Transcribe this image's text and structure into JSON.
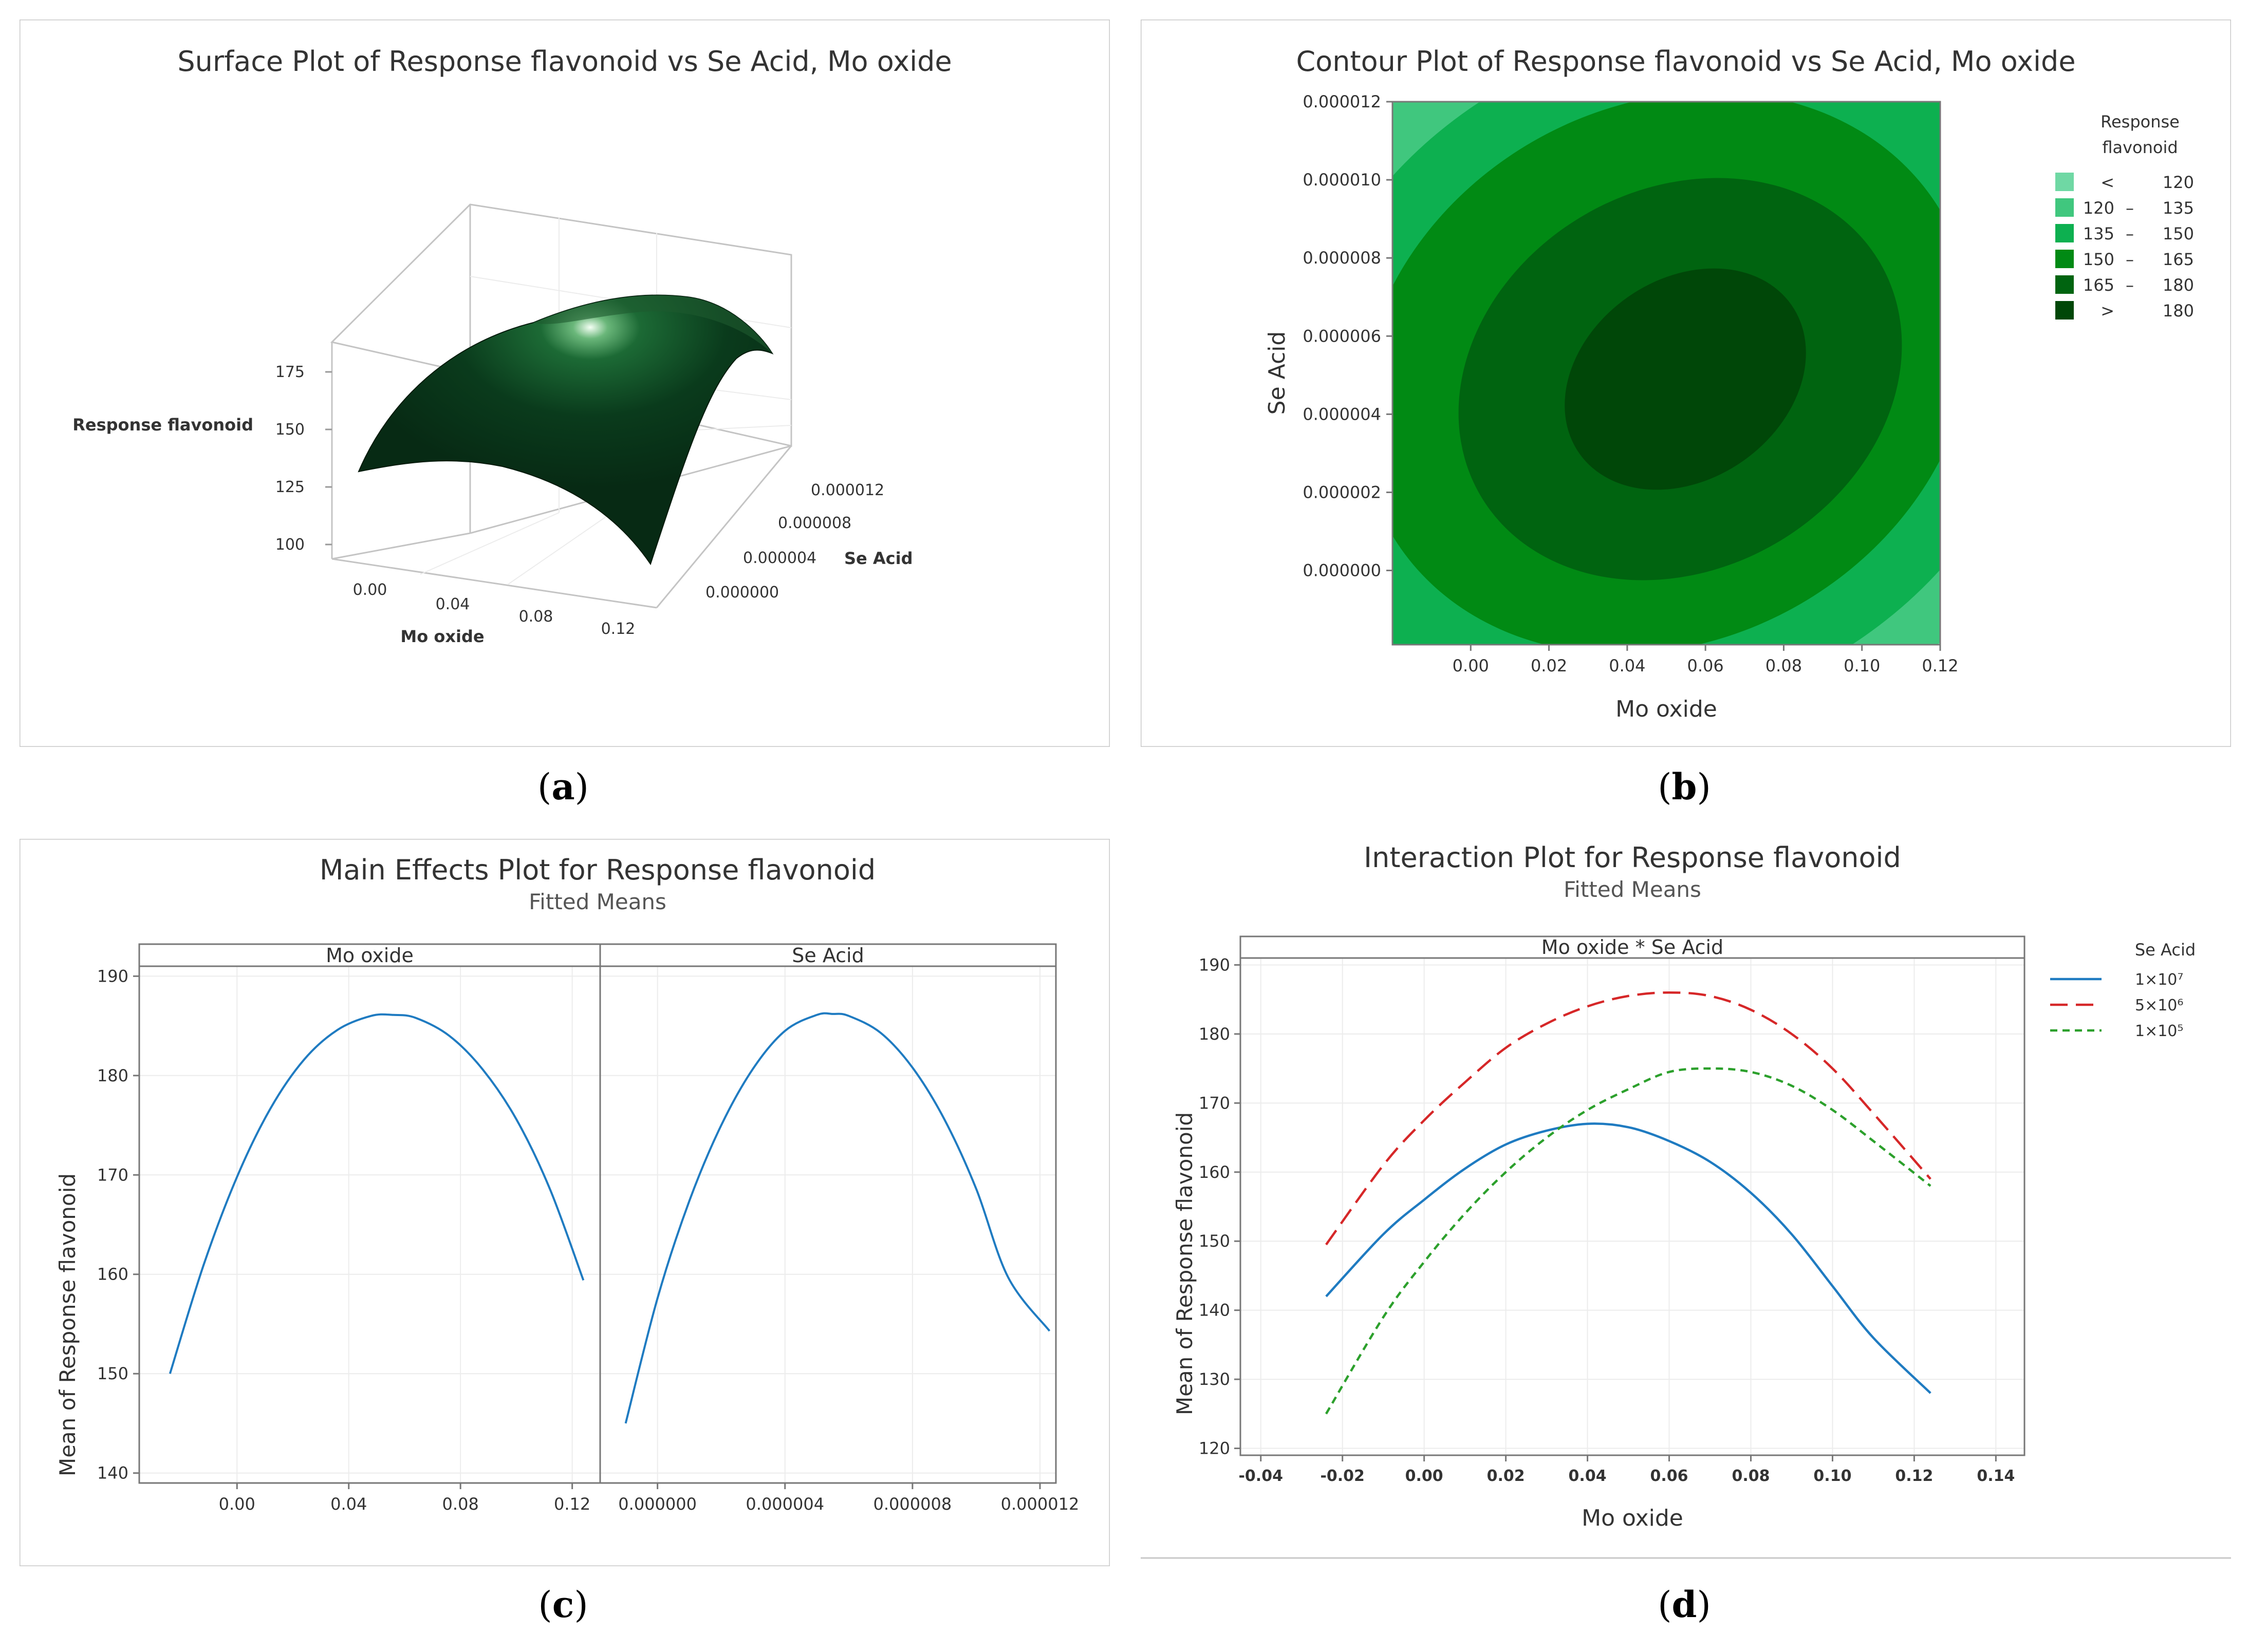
{
  "captions": {
    "a": "a",
    "b": "b",
    "c": "c",
    "d": "d"
  },
  "chart_data": [
    {
      "type": "surface",
      "title": "Surface Plot of Response flavonoid vs Se Acid, Mo oxide",
      "xlabel": "Mo oxide",
      "ylabel": "Se Acid",
      "zlabel": "Response flavonoid",
      "x_ticks": [
        "0.00",
        "0.04",
        "0.08",
        "0.12"
      ],
      "y_ticks": [
        "0.000000",
        "0.000004",
        "0.000008",
        "0.000012"
      ],
      "z_ticks": [
        "100",
        "125",
        "150",
        "175"
      ],
      "zlim": [
        100,
        190
      ],
      "colors": {
        "surface": "#0a3b1c",
        "highlight": "#e8f5ea"
      }
    },
    {
      "type": "contour",
      "title": "Contour Plot of Response flavonoid vs Se Acid, Mo oxide",
      "xlabel": "Mo oxide",
      "ylabel": "Se Acid",
      "x_ticks": [
        "0.00",
        "0.02",
        "0.04",
        "0.06",
        "0.08",
        "0.10",
        "0.12"
      ],
      "x_tick_values": [
        0,
        0.02,
        0.04,
        0.06,
        0.08,
        0.1,
        0.12
      ],
      "y_ticks": [
        "0.000000",
        "0.000002",
        "0.000004",
        "0.000006",
        "0.000008",
        "0.000010",
        "0.000012"
      ],
      "y_tick_values": [
        0,
        2e-06,
        4e-06,
        6e-06,
        8e-06,
        1e-05,
        1.2e-05
      ],
      "xlim": [
        -0.02,
        0.12
      ],
      "ylim": [
        -1.9e-06,
        1.2e-05
      ],
      "legend_title": [
        "Response",
        "flavonoid"
      ],
      "legend": [
        {
          "lo": "<",
          "hi": "120",
          "color": "#6fd8a4"
        },
        {
          "lo": "120",
          "hi": "135",
          "color": "#40c77e"
        },
        {
          "lo": "135",
          "hi": "150",
          "color": "#0db050"
        },
        {
          "lo": "150",
          "hi": "165",
          "color": "#018a14"
        },
        {
          "lo": "165",
          "hi": "180",
          "color": "#006410"
        },
        {
          "lo": ">",
          "hi": "180",
          "color": "#004708"
        }
      ],
      "legend_position": "right"
    },
    {
      "type": "line",
      "title": "Main Effects Plot for Response flavonoid",
      "subtitle": "Fitted Means",
      "ylabel": "Mean of Response flavonoid",
      "ylim": [
        139,
        191
      ],
      "y_ticks": [
        140,
        150,
        160,
        170,
        180,
        190
      ],
      "panels": [
        {
          "name": "Mo oxide",
          "xlim": [
            -0.035,
            0.13
          ],
          "x_ticks": [
            "0.00",
            "0.04",
            "0.08",
            "0.12"
          ],
          "x_tick_values": [
            0,
            0.04,
            0.08,
            0.12
          ],
          "x": [
            -0.024,
            -0.012,
            0.0,
            0.012,
            0.024,
            0.036,
            0.048,
            0.056,
            0.064,
            0.076,
            0.088,
            0.1,
            0.112,
            0.124
          ],
          "y": [
            150.0,
            160.9,
            169.8,
            176.7,
            181.6,
            184.6,
            186.0,
            186.1,
            185.8,
            184.0,
            180.6,
            175.6,
            168.6,
            159.4
          ]
        },
        {
          "name": "Se Acid",
          "xlim": [
            -1.8e-06,
            1.25e-05
          ],
          "x_ticks": [
            "0.000000",
            "0.000004",
            "0.000008",
            "0.000012"
          ],
          "x_tick_values": [
            0,
            4e-06,
            8e-06,
            1.2e-05
          ],
          "x": [
            -1e-06,
            0.0,
            1e-06,
            2e-06,
            3e-06,
            4e-06,
            5e-06,
            5.5e-06,
            6e-06,
            7e-06,
            8e-06,
            9e-06,
            1e-05,
            1.1e-05,
            1.23e-05
          ],
          "y": [
            145.0,
            157.6,
            167.4,
            175.0,
            180.7,
            184.5,
            186.1,
            186.2,
            186.0,
            184.3,
            180.8,
            175.6,
            168.6,
            159.7,
            154.3
          ]
        }
      ],
      "colors": {
        "line": "#1f7bc1"
      }
    },
    {
      "type": "line",
      "title": "Interaction Plot for Response flavonoid",
      "subtitle": "Fitted Means",
      "panel_title": "Mo oxide * Se Acid",
      "xlabel": "Mo oxide",
      "ylabel": "Mean of Response flavonoid",
      "xlim": [
        -0.045,
        0.147
      ],
      "ylim": [
        119,
        191
      ],
      "x_ticks": [
        "-0.04",
        "-0.02",
        "0.00",
        "0.02",
        "0.04",
        "0.06",
        "0.08",
        "0.10",
        "0.12",
        "0.14"
      ],
      "x_tick_values": [
        -0.04,
        -0.02,
        0,
        0.02,
        0.04,
        0.06,
        0.08,
        0.1,
        0.12,
        0.14
      ],
      "y_ticks": [
        120,
        130,
        140,
        150,
        160,
        170,
        180,
        190
      ],
      "legend_title": "Se Acid",
      "legend_position": "right",
      "series": [
        {
          "name": "1×10⁷",
          "color": "#1f7bc1",
          "dash": "solid",
          "x": [
            -0.024,
            -0.01,
            0.0,
            0.01,
            0.02,
            0.03,
            0.04,
            0.05,
            0.06,
            0.07,
            0.08,
            0.09,
            0.1,
            0.11,
            0.124
          ],
          "y": [
            142,
            151,
            156,
            160.5,
            164,
            166,
            167,
            166.5,
            164.5,
            161.5,
            157,
            151,
            143.5,
            136,
            128
          ]
        },
        {
          "name": "5×10⁶",
          "color": "#d62728",
          "dash": "long",
          "x": [
            -0.024,
            -0.01,
            0.0,
            0.01,
            0.02,
            0.03,
            0.04,
            0.05,
            0.06,
            0.07,
            0.08,
            0.09,
            0.1,
            0.11,
            0.124
          ],
          "y": [
            149.5,
            161,
            167.5,
            173,
            178,
            181.5,
            184,
            185.5,
            186,
            185.5,
            183.5,
            180,
            175,
            168.5,
            159
          ]
        },
        {
          "name": "1×10⁵",
          "color": "#2ca02c",
          "dash": "short",
          "x": [
            -0.024,
            -0.01,
            0.0,
            0.01,
            0.02,
            0.03,
            0.04,
            0.05,
            0.06,
            0.07,
            0.08,
            0.09,
            0.1,
            0.11,
            0.124
          ],
          "y": [
            125,
            139,
            147,
            154,
            160,
            165,
            169,
            172,
            174.5,
            175,
            174.5,
            172.5,
            169,
            164.5,
            158
          ]
        }
      ]
    }
  ]
}
